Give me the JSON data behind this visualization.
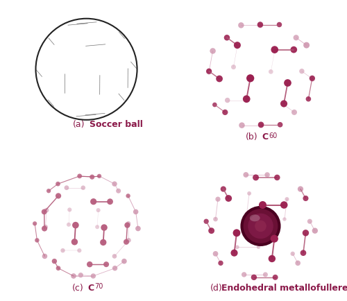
{
  "bg_color": "#ffffff",
  "fig_width": 5.0,
  "fig_height": 4.34,
  "dpi": 100,
  "panel_labels": [
    "(a)",
    "(b)",
    "(c)",
    "(d)"
  ],
  "panel_label_bold": [
    "Soccer ball",
    "C",
    "C",
    "Endohedral metallofullerene"
  ],
  "panel_subscripts": [
    "",
    "60",
    "70",
    ""
  ],
  "label_color": "#8B1A4A",
  "bond_color_dark": "#B05575",
  "bond_color_light": "#D4A0B8",
  "atom_color_dark": "#9B2050",
  "atom_color_light": "#CC90AA",
  "atom_color_mid": "#B86080",
  "metal_color": "#5A0028",
  "soccer_dark": "#7B0030",
  "label_fontsize": 9,
  "subscript_fontsize": 7
}
